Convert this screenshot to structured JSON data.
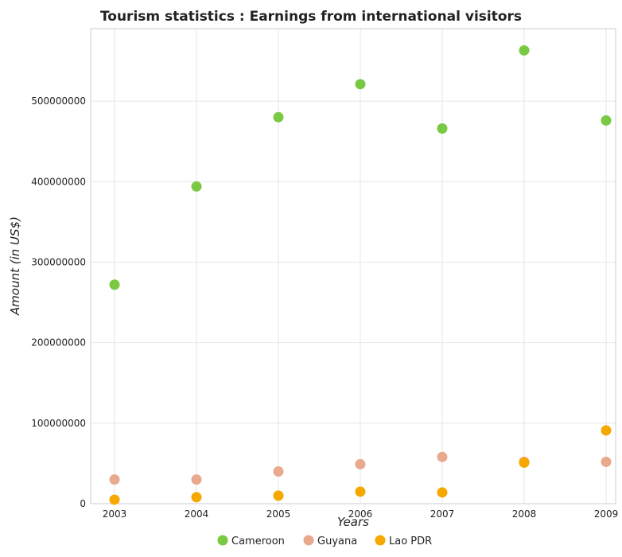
{
  "chart_data": {
    "type": "scatter",
    "title": "Tourism statistics : Earnings from international visitors",
    "xlabel": "Years",
    "ylabel": "Amount (in US$)",
    "categories": [
      "2003",
      "2004",
      "2005",
      "2006",
      "2007",
      "2008",
      "2009"
    ],
    "ylim": [
      0,
      590000000
    ],
    "yticks": [
      0,
      100000000,
      200000000,
      300000000,
      400000000,
      500000000
    ],
    "ytick_labels": [
      "0",
      "100000000",
      "200000000",
      "300000000",
      "400000000",
      "500000000"
    ],
    "grid": true,
    "legend_position": "bottom",
    "series": [
      {
        "name": "Cameroon",
        "color": "#7ac943",
        "values": [
          272000000,
          394000000,
          480000000,
          521000000,
          466000000,
          563000000,
          476000000
        ]
      },
      {
        "name": "Guyana",
        "color": "#e8a98c",
        "values": [
          30000000,
          30000000,
          40000000,
          49000000,
          58000000,
          52000000,
          52000000
        ]
      },
      {
        "name": "Lao PDR",
        "color": "#f5a800",
        "values": [
          5000000,
          8000000,
          10000000,
          15000000,
          14000000,
          51000000,
          91000000
        ]
      }
    ]
  }
}
